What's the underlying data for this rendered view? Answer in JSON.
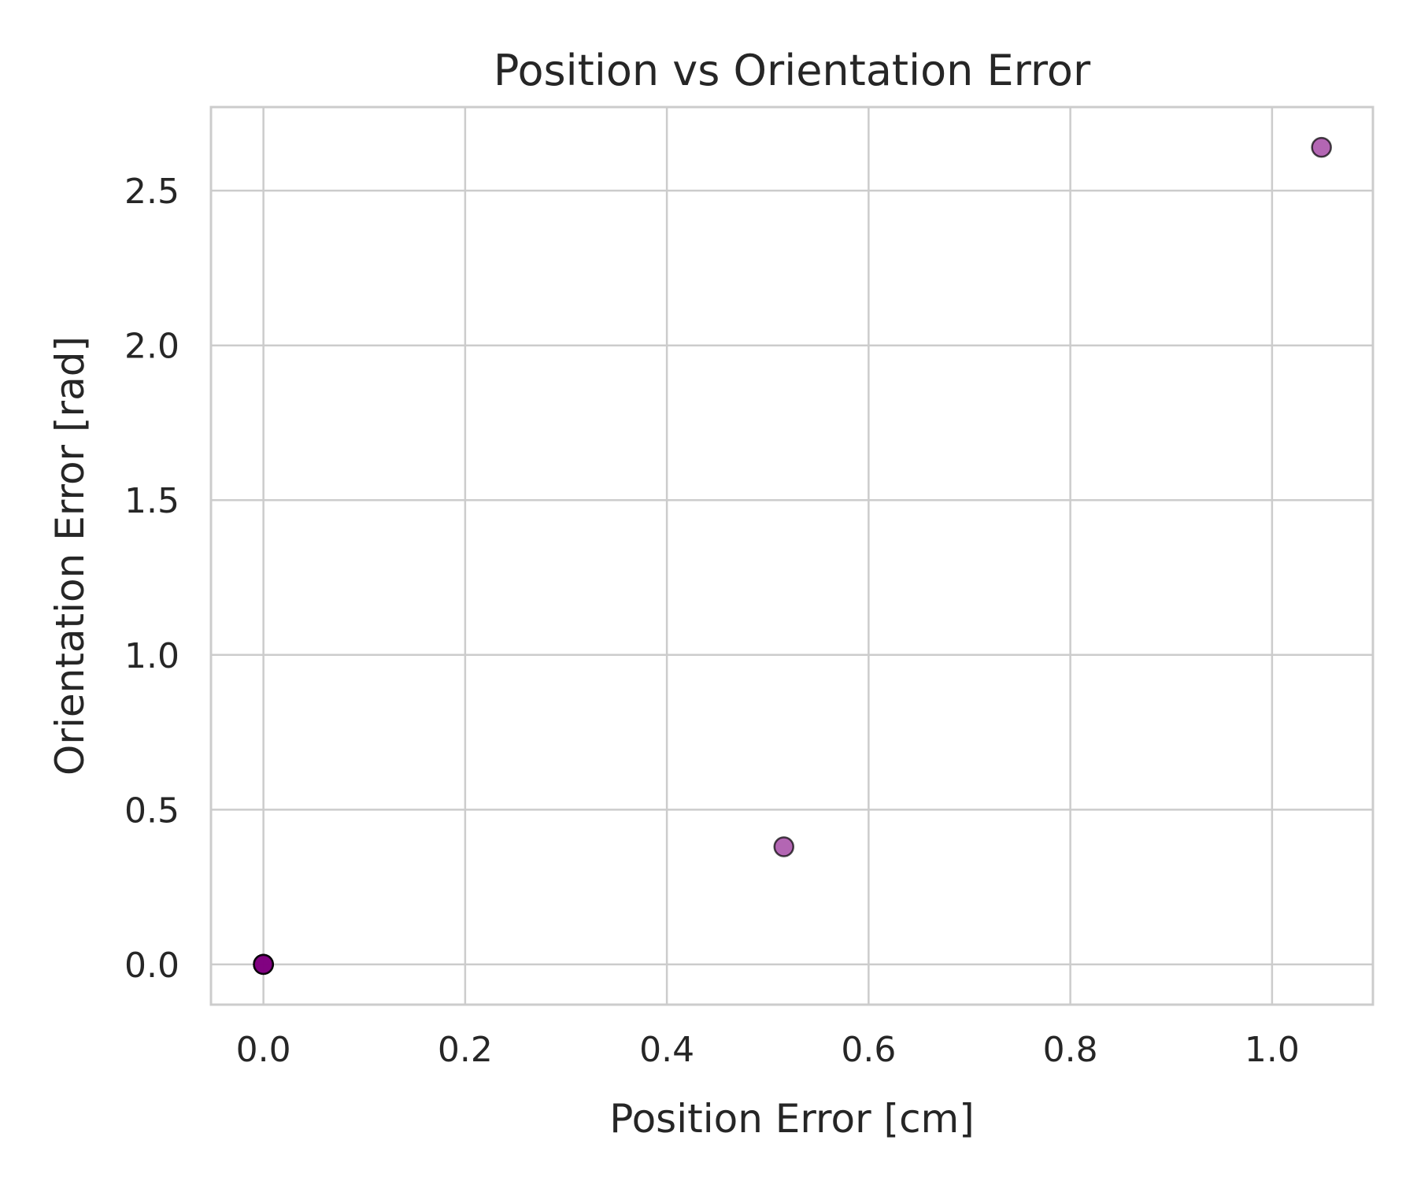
{
  "chart_data": {
    "type": "scatter",
    "title": "Position vs Orientation Error",
    "xlabel": "Position Error [cm]",
    "ylabel": "Orientation Error [rad]",
    "xlim": [
      -0.052,
      1.1
    ],
    "ylim": [
      -0.13,
      2.77
    ],
    "xticks": [
      0.0,
      0.2,
      0.4,
      0.6,
      0.8,
      1.0
    ],
    "xtick_labels": [
      "0.0",
      "0.2",
      "0.4",
      "0.6",
      "0.8",
      "1.0"
    ],
    "yticks": [
      0.0,
      0.5,
      1.0,
      1.5,
      2.0,
      2.5
    ],
    "ytick_labels": [
      "0.0",
      "0.5",
      "1.0",
      "1.5",
      "2.0",
      "2.5"
    ],
    "grid": true,
    "marker_color": "#800080",
    "marker_edge_color": "#000000",
    "marker_alpha": 0.6,
    "points": [
      {
        "x": 0.0,
        "y": 0.0
      },
      {
        "x": 0.0,
        "y": 0.0
      },
      {
        "x": 0.0,
        "y": 0.0
      },
      {
        "x": 0.0,
        "y": 0.0
      },
      {
        "x": 0.0,
        "y": 0.0
      },
      {
        "x": 0.516,
        "y": 0.38
      },
      {
        "x": 1.049,
        "y": 2.64
      }
    ]
  }
}
